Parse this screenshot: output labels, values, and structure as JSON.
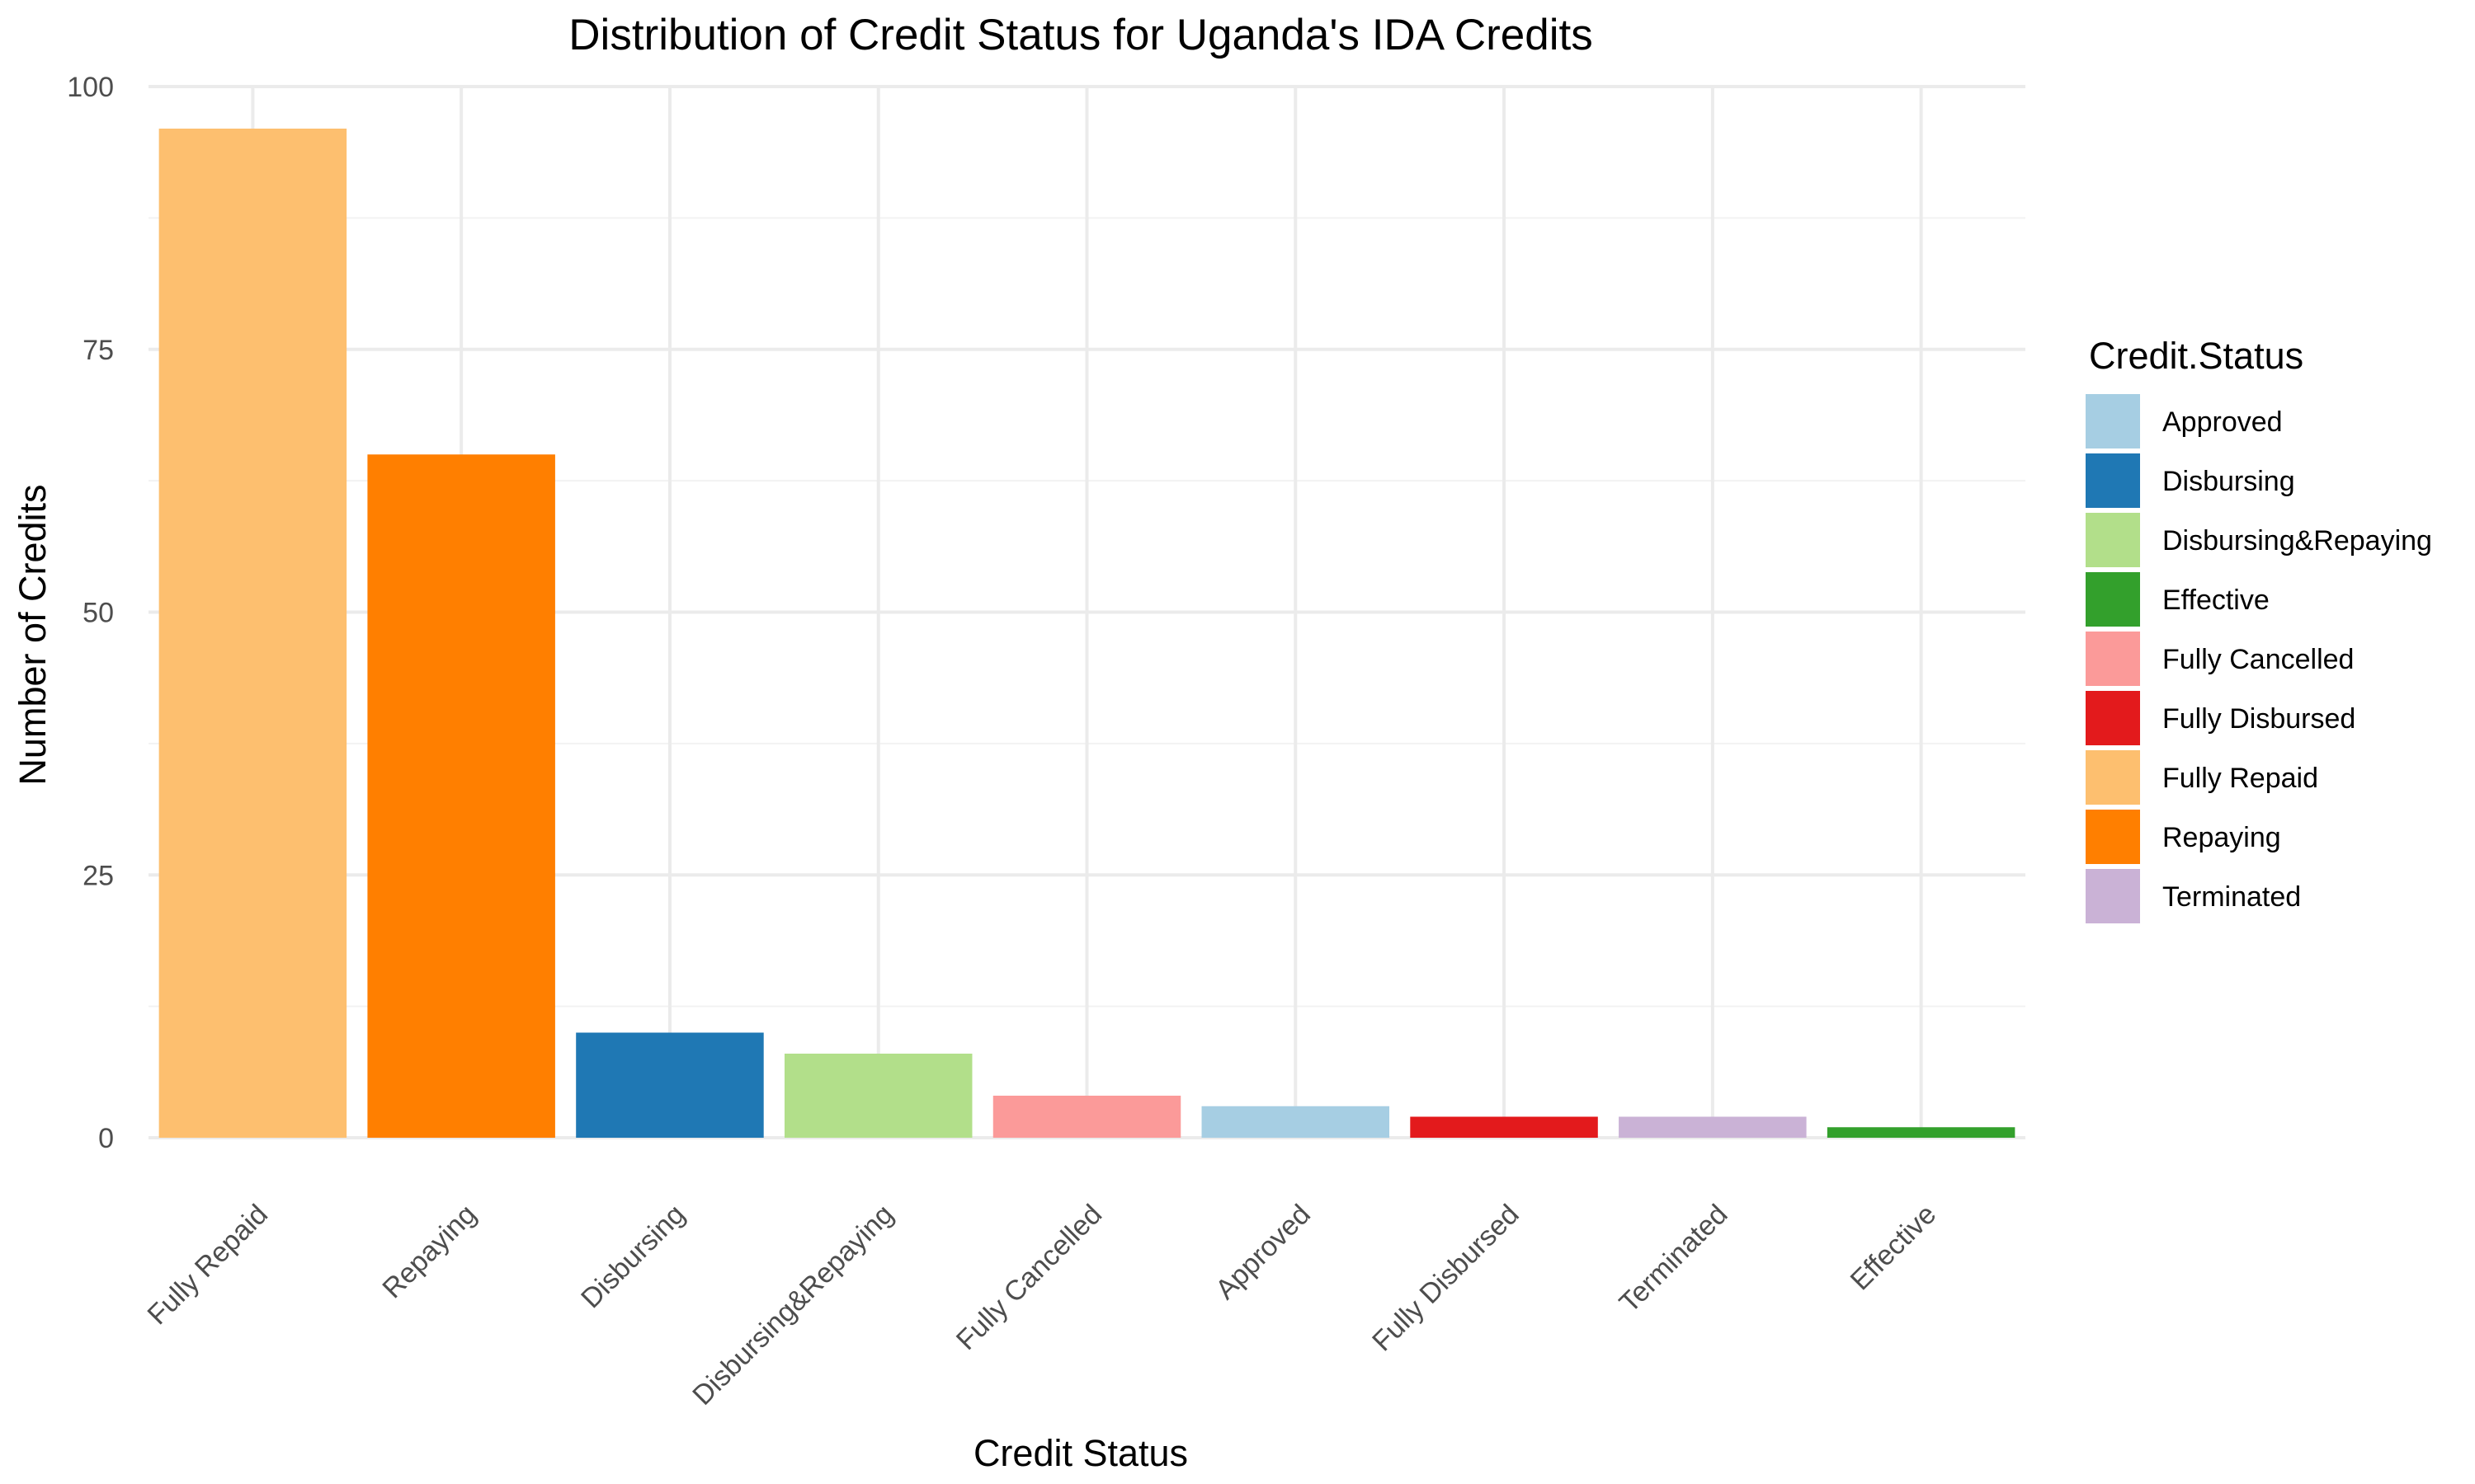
{
  "chart_data": {
    "type": "bar",
    "title": "Distribution of Credit Status for Uganda's IDA Credits",
    "xlabel": "Credit Status",
    "ylabel": "Number of Credits",
    "categories": [
      "Fully Repaid",
      "Repaying",
      "Disbursing",
      "Disbursing&Repaying",
      "Fully Cancelled",
      "Approved",
      "Fully Disbursed",
      "Terminated",
      "Effective"
    ],
    "values": [
      96,
      65,
      10,
      8,
      4,
      3,
      2,
      2,
      1
    ],
    "colors": [
      "#FDBF6F",
      "#FF7F00",
      "#1F78B4",
      "#B2DF8A",
      "#FB9A99",
      "#A6CEE3",
      "#E31A1C",
      "#CAB2D6",
      "#33A02C"
    ],
    "ylim": [
      0,
      100
    ],
    "yticks": [
      0,
      25,
      50,
      75,
      100
    ],
    "grid": true,
    "legend": {
      "title": "Credit.Status",
      "position": "right",
      "items": [
        {
          "label": "Approved",
          "color": "#A6CEE3"
        },
        {
          "label": "Disbursing",
          "color": "#1F78B4"
        },
        {
          "label": "Disbursing&Repaying",
          "color": "#B2DF8A"
        },
        {
          "label": "Effective",
          "color": "#33A02C"
        },
        {
          "label": "Fully Cancelled",
          "color": "#FB9A99"
        },
        {
          "label": "Fully Disbursed",
          "color": "#E31A1C"
        },
        {
          "label": "Fully Repaid",
          "color": "#FDBF6F"
        },
        {
          "label": "Repaying",
          "color": "#FF7F00"
        },
        {
          "label": "Terminated",
          "color": "#CAB2D6"
        }
      ]
    }
  }
}
